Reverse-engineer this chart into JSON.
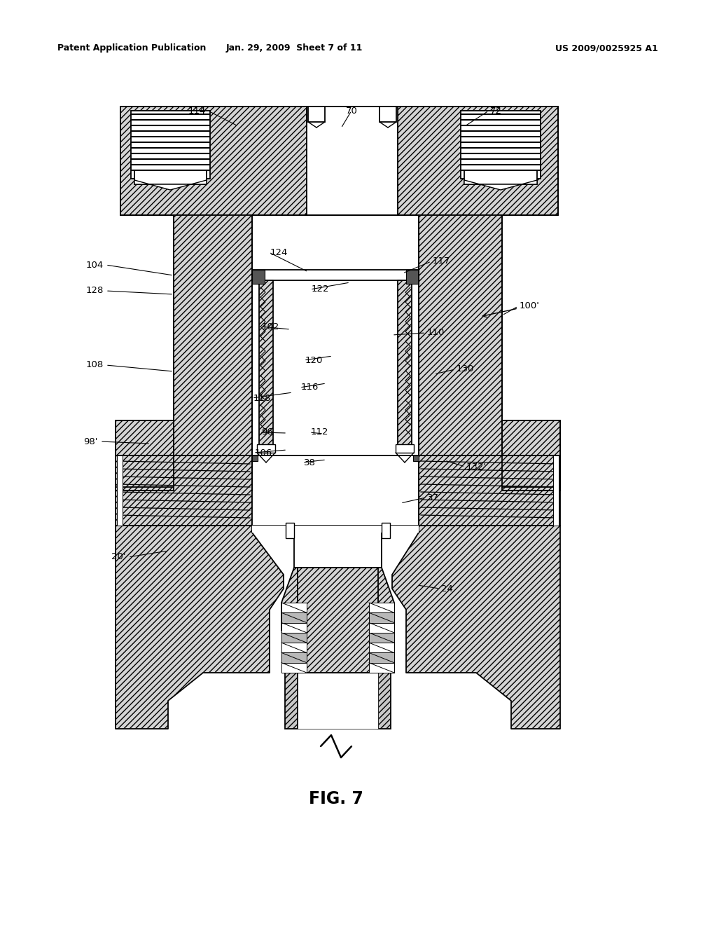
{
  "bg": "#ffffff",
  "blk": "#000000",
  "hfc": "#d4d4d4",
  "hfc2": "#b0b0b0",
  "header_left": "Patent Application Publication",
  "header_center": "Jan. 29, 2009  Sheet 7 of 11",
  "header_right": "US 2009/0025925 A1",
  "fig_caption": "FIG. 7",
  "lw": 1.3,
  "hatch": "////",
  "hatch_dense": "////////"
}
